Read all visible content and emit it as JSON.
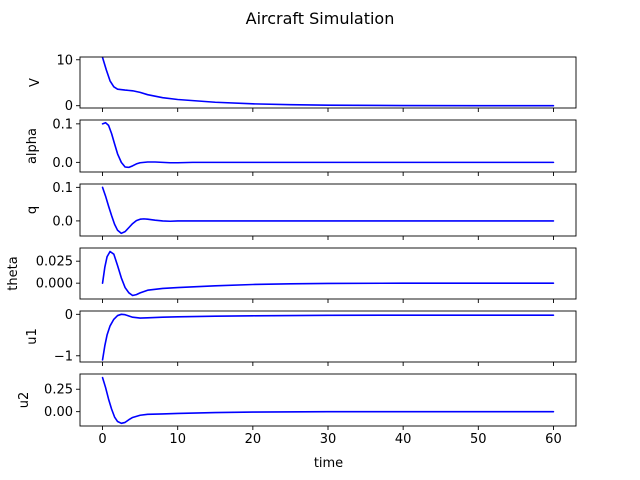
{
  "chart_data": {
    "type": "line",
    "title": "Aircraft Simulation",
    "xlabel": "time",
    "xlim": [
      -3,
      63
    ],
    "x_ticks": [
      "0",
      "10",
      "20",
      "30",
      "40",
      "50",
      "60"
    ],
    "x_tick_values": [
      0,
      10,
      20,
      30,
      40,
      50,
      60
    ],
    "grid": false,
    "line_color": "#0000ff",
    "subplots": [
      {
        "ylabel": "V",
        "ylim": [
          -0.5,
          10.6
        ],
        "y_ticks": [
          "0",
          "10"
        ],
        "y_tick_values": [
          0,
          10
        ],
        "points": [
          [
            0,
            10.5
          ],
          [
            0.5,
            7.8
          ],
          [
            1,
            5.4
          ],
          [
            1.5,
            4.1
          ],
          [
            2,
            3.6
          ],
          [
            3,
            3.4
          ],
          [
            4,
            3.25
          ],
          [
            5,
            2.9
          ],
          [
            6,
            2.4
          ],
          [
            8,
            1.75
          ],
          [
            10,
            1.35
          ],
          [
            15,
            0.75
          ],
          [
            20,
            0.4
          ],
          [
            25,
            0.22
          ],
          [
            30,
            0.12
          ],
          [
            40,
            0.04
          ],
          [
            50,
            0.01
          ],
          [
            60,
            0.0
          ]
        ]
      },
      {
        "ylabel": "alpha",
        "ylim": [
          -0.025,
          0.11
        ],
        "y_ticks": [
          "0.1",
          "0.0"
        ],
        "y_tick_values": [
          0.1,
          0.0
        ],
        "points": [
          [
            0,
            0.1
          ],
          [
            0.4,
            0.103
          ],
          [
            0.8,
            0.096
          ],
          [
            1.2,
            0.075
          ],
          [
            1.6,
            0.048
          ],
          [
            2,
            0.022
          ],
          [
            2.5,
            0.0
          ],
          [
            3,
            -0.012
          ],
          [
            3.5,
            -0.013
          ],
          [
            4,
            -0.009
          ],
          [
            4.5,
            -0.004
          ],
          [
            5,
            -0.001
          ],
          [
            6,
            0.001
          ],
          [
            7,
            0.001
          ],
          [
            8,
            0.0
          ],
          [
            9,
            -0.001
          ],
          [
            10,
            -0.001
          ],
          [
            12,
            0.0
          ],
          [
            15,
            0.0
          ],
          [
            20,
            0.0
          ],
          [
            30,
            0.0
          ],
          [
            40,
            0.0
          ],
          [
            50,
            0.0
          ],
          [
            60,
            0.0
          ]
        ]
      },
      {
        "ylabel": "q",
        "ylim": [
          -0.045,
          0.11
        ],
        "y_ticks": [
          "0.1",
          "0.0"
        ],
        "y_tick_values": [
          0.1,
          0.0
        ],
        "points": [
          [
            0,
            0.1
          ],
          [
            0.4,
            0.074
          ],
          [
            0.8,
            0.044
          ],
          [
            1.2,
            0.016
          ],
          [
            1.6,
            -0.01
          ],
          [
            2,
            -0.028
          ],
          [
            2.5,
            -0.037
          ],
          [
            3,
            -0.032
          ],
          [
            3.5,
            -0.02
          ],
          [
            4,
            -0.008
          ],
          [
            4.5,
            0.001
          ],
          [
            5,
            0.005
          ],
          [
            5.5,
            0.006
          ],
          [
            6,
            0.005
          ],
          [
            7,
            0.002
          ],
          [
            8,
            0.0
          ],
          [
            9,
            -0.001
          ],
          [
            10,
            0.0
          ],
          [
            15,
            0.0
          ],
          [
            20,
            0.0
          ],
          [
            30,
            0.0
          ],
          [
            40,
            0.0
          ],
          [
            50,
            0.0
          ],
          [
            60,
            0.0
          ]
        ]
      },
      {
        "ylabel": "theta",
        "ylim": [
          -0.018,
          0.04
        ],
        "y_ticks": [
          "0.025",
          "0.000"
        ],
        "y_tick_values": [
          0.025,
          0.0
        ],
        "points": [
          [
            0,
            0.0
          ],
          [
            0.3,
            0.018
          ],
          [
            0.6,
            0.03
          ],
          [
            1,
            0.036
          ],
          [
            1.5,
            0.033
          ],
          [
            2,
            0.02
          ],
          [
            2.5,
            0.006
          ],
          [
            3,
            -0.005
          ],
          [
            3.5,
            -0.011
          ],
          [
            4,
            -0.014
          ],
          [
            4.5,
            -0.013
          ],
          [
            5,
            -0.011
          ],
          [
            6,
            -0.008
          ],
          [
            7,
            -0.007
          ],
          [
            8,
            -0.006
          ],
          [
            10,
            -0.005
          ],
          [
            15,
            -0.003
          ],
          [
            20,
            -0.0015
          ],
          [
            25,
            -0.0007
          ],
          [
            30,
            -0.0003
          ],
          [
            40,
            0.0
          ],
          [
            50,
            0.0
          ],
          [
            60,
            0.0
          ]
        ]
      },
      {
        "ylabel": "u1",
        "ylim": [
          -1.15,
          0.08
        ],
        "y_ticks": [
          "0",
          "−1"
        ],
        "y_tick_values": [
          0,
          -1
        ],
        "points": [
          [
            0,
            -1.1
          ],
          [
            0.3,
            -0.76
          ],
          [
            0.6,
            -0.5
          ],
          [
            1,
            -0.28
          ],
          [
            1.5,
            -0.12
          ],
          [
            2,
            -0.03
          ],
          [
            2.5,
            0.0
          ],
          [
            3,
            -0.01
          ],
          [
            3.5,
            -0.04
          ],
          [
            4,
            -0.07
          ],
          [
            5,
            -0.09
          ],
          [
            6,
            -0.085
          ],
          [
            8,
            -0.07
          ],
          [
            10,
            -0.06
          ],
          [
            15,
            -0.045
          ],
          [
            20,
            -0.035
          ],
          [
            30,
            -0.025
          ],
          [
            40,
            -0.02
          ],
          [
            50,
            -0.02
          ],
          [
            60,
            -0.02
          ]
        ]
      },
      {
        "ylabel": "u2",
        "ylim": [
          -0.16,
          0.42
        ],
        "y_ticks": [
          "0.25",
          "0.00"
        ],
        "y_tick_values": [
          0.25,
          0.0
        ],
        "points": [
          [
            0,
            0.38
          ],
          [
            0.4,
            0.27
          ],
          [
            0.8,
            0.14
          ],
          [
            1.2,
            0.03
          ],
          [
            1.6,
            -0.06
          ],
          [
            2,
            -0.11
          ],
          [
            2.5,
            -0.13
          ],
          [
            3,
            -0.12
          ],
          [
            3.5,
            -0.09
          ],
          [
            4,
            -0.065
          ],
          [
            5,
            -0.04
          ],
          [
            6,
            -0.03
          ],
          [
            8,
            -0.025
          ],
          [
            10,
            -0.02
          ],
          [
            15,
            -0.01
          ],
          [
            20,
            -0.005
          ],
          [
            30,
            0.0
          ],
          [
            40,
            0.0
          ],
          [
            50,
            0.0
          ],
          [
            60,
            0.0
          ]
        ]
      }
    ]
  }
}
